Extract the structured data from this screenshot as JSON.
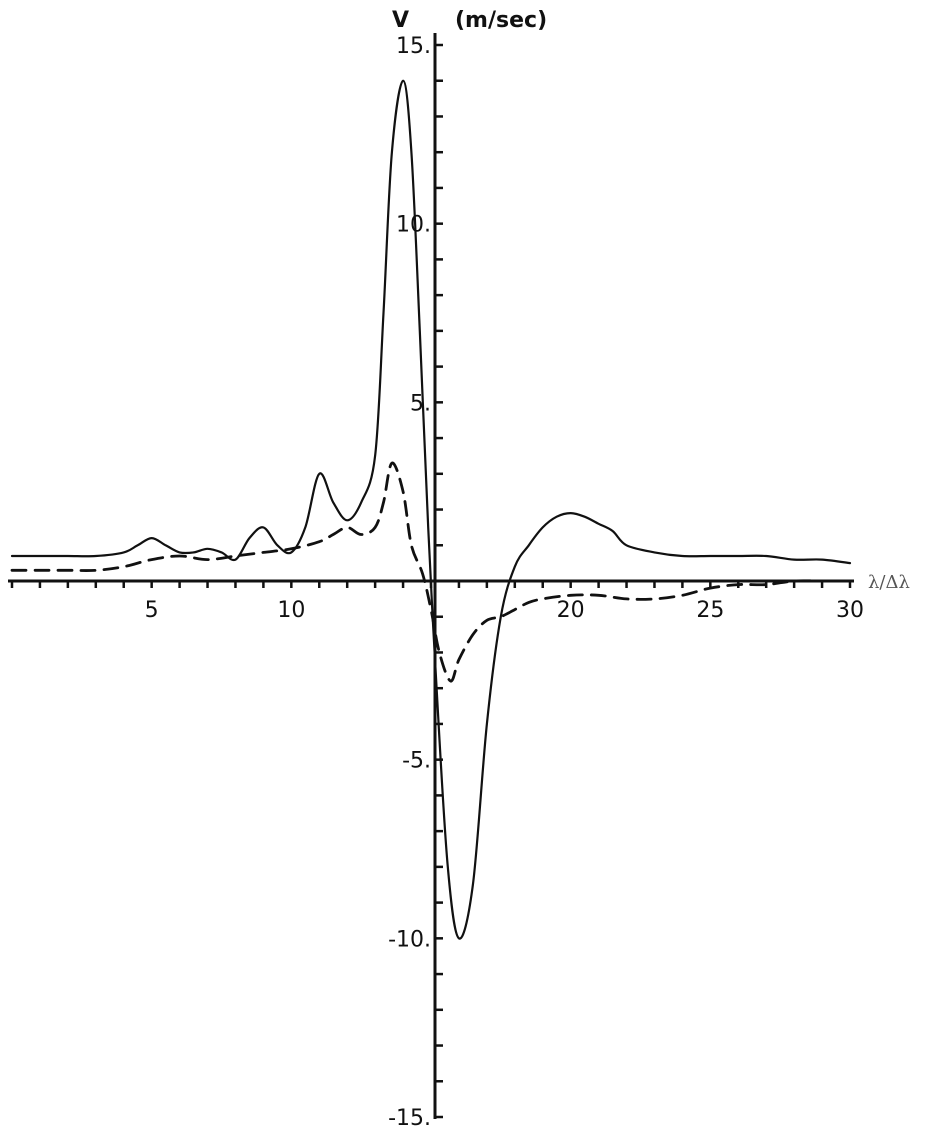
{
  "chart_data": {
    "type": "line",
    "title": "",
    "ylabel_symbol": "V",
    "ylabel_unit": "(m/sec)",
    "xlabel": "λ/Δλ",
    "xlim": [
      0,
      30
    ],
    "ylim": [
      -15,
      15
    ],
    "x_ticks": [
      0,
      1,
      2,
      3,
      4,
      5,
      6,
      7,
      8,
      9,
      10,
      11,
      12,
      13,
      14,
      15,
      16,
      17,
      18,
      19,
      20,
      21,
      22,
      23,
      24,
      25,
      26,
      27,
      28,
      29,
      30
    ],
    "x_tick_labels": [
      {
        "value": 5,
        "text": "5"
      },
      {
        "value": 10,
        "text": "10"
      },
      {
        "value": 20,
        "text": "20"
      },
      {
        "value": 25,
        "text": "25"
      },
      {
        "value": 30,
        "text": "30"
      }
    ],
    "y_ticks": [
      -15,
      -14,
      -13,
      -12,
      -11,
      -10,
      -9,
      -8,
      -7,
      -6,
      -5,
      -4,
      -3,
      -2,
      -1,
      0,
      1,
      2,
      3,
      4,
      5,
      6,
      7,
      8,
      9,
      10,
      11,
      12,
      13,
      14,
      15
    ],
    "y_tick_labels": [
      {
        "value": 15,
        "text": "15."
      },
      {
        "value": 10,
        "text": "10."
      },
      {
        "value": 5,
        "text": "5."
      },
      {
        "value": -5,
        "text": "-5."
      },
      {
        "value": -10,
        "text": "-10."
      },
      {
        "value": -15,
        "text": "-15."
      }
    ],
    "grid": false,
    "legend": "none",
    "series": [
      {
        "style": "solid",
        "x": [
          0,
          1,
          2,
          3,
          4,
          4.5,
          5,
          5.5,
          6,
          6.5,
          7,
          7.5,
          8,
          8.5,
          9,
          9.5,
          10,
          10.5,
          11,
          11.5,
          12,
          12.5,
          13,
          13.3,
          13.6,
          14,
          14.3,
          14.6,
          14.9,
          15.2,
          15.6,
          16,
          16.5,
          17,
          17.5,
          18,
          18.5,
          19,
          19.5,
          20,
          20.5,
          21,
          21.5,
          22,
          23,
          24,
          25,
          26,
          27,
          28,
          29,
          30
        ],
        "y": [
          0.7,
          0.7,
          0.7,
          0.7,
          0.8,
          1.0,
          1.2,
          1.0,
          0.8,
          0.8,
          0.9,
          0.8,
          0.6,
          1.2,
          1.5,
          1.0,
          0.8,
          1.5,
          3.0,
          2.2,
          1.7,
          2.2,
          3.5,
          7.5,
          12.0,
          14.0,
          12.0,
          7.0,
          1.5,
          -3.0,
          -8.0,
          -10.0,
          -8.5,
          -4.0,
          -1.0,
          0.4,
          1.0,
          1.5,
          1.8,
          1.9,
          1.8,
          1.6,
          1.4,
          1.0,
          0.8,
          0.7,
          0.7,
          0.7,
          0.7,
          0.6,
          0.6,
          0.5
        ]
      },
      {
        "style": "dashed",
        "x": [
          0,
          1,
          2,
          3,
          4,
          5,
          6,
          7,
          8,
          9,
          10,
          11,
          11.5,
          12,
          12.5,
          13,
          13.3,
          13.6,
          14,
          14.3,
          14.7,
          15,
          15.3,
          15.7,
          16,
          16.5,
          17,
          17.5,
          18,
          18.5,
          19,
          20,
          21,
          22,
          23,
          24,
          25,
          26,
          27,
          28,
          29,
          30
        ],
        "y": [
          0.3,
          0.3,
          0.3,
          0.3,
          0.4,
          0.6,
          0.7,
          0.6,
          0.7,
          0.8,
          0.9,
          1.1,
          1.3,
          1.5,
          1.3,
          1.5,
          2.2,
          3.3,
          2.5,
          1.0,
          0.2,
          -0.8,
          -2.0,
          -2.8,
          -2.2,
          -1.5,
          -1.1,
          -1.0,
          -0.8,
          -0.6,
          -0.5,
          -0.4,
          -0.4,
          -0.5,
          -0.5,
          -0.4,
          -0.2,
          -0.1,
          -0.1,
          0.0,
          0.0,
          0.0
        ]
      }
    ]
  }
}
